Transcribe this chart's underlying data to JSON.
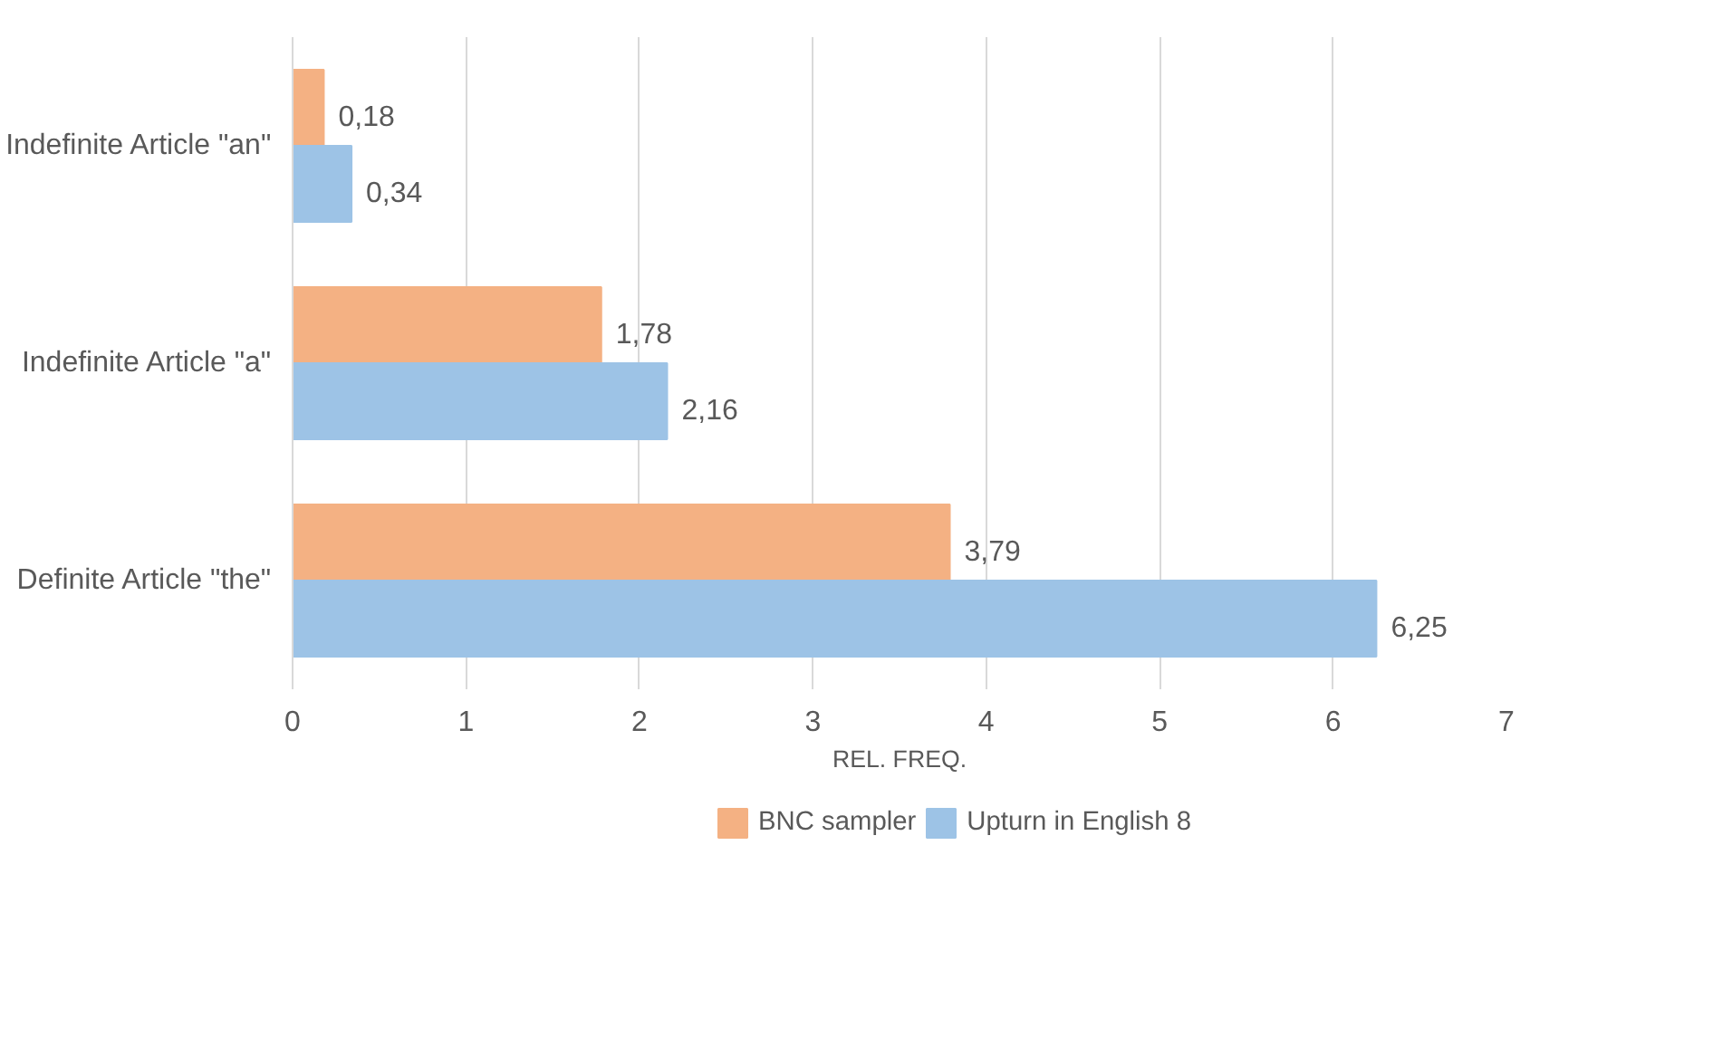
{
  "chart_data": {
    "type": "bar",
    "orientation": "horizontal",
    "xlabel": "REL. FREQ.",
    "categories": [
      "Indefinite Article \"an\"",
      "Indefinite Article \"a\"",
      "Definite Article \"the\""
    ],
    "series": [
      {
        "name": "BNC sampler",
        "color": "#f4b183",
        "values": [
          0.18,
          1.78,
          3.79
        ],
        "value_labels": [
          "0,18",
          "1,78",
          "3,79"
        ]
      },
      {
        "name": "Upturn in English 8",
        "color": "#9dc3e6",
        "values": [
          0.34,
          2.16,
          6.25
        ],
        "value_labels": [
          "0,34",
          "2,16",
          "6,25"
        ]
      }
    ],
    "xlim": [
      0,
      7
    ],
    "xticks": [
      0,
      1,
      2,
      3,
      4,
      5,
      6,
      7
    ],
    "grid": "x",
    "legend": "bottom"
  }
}
